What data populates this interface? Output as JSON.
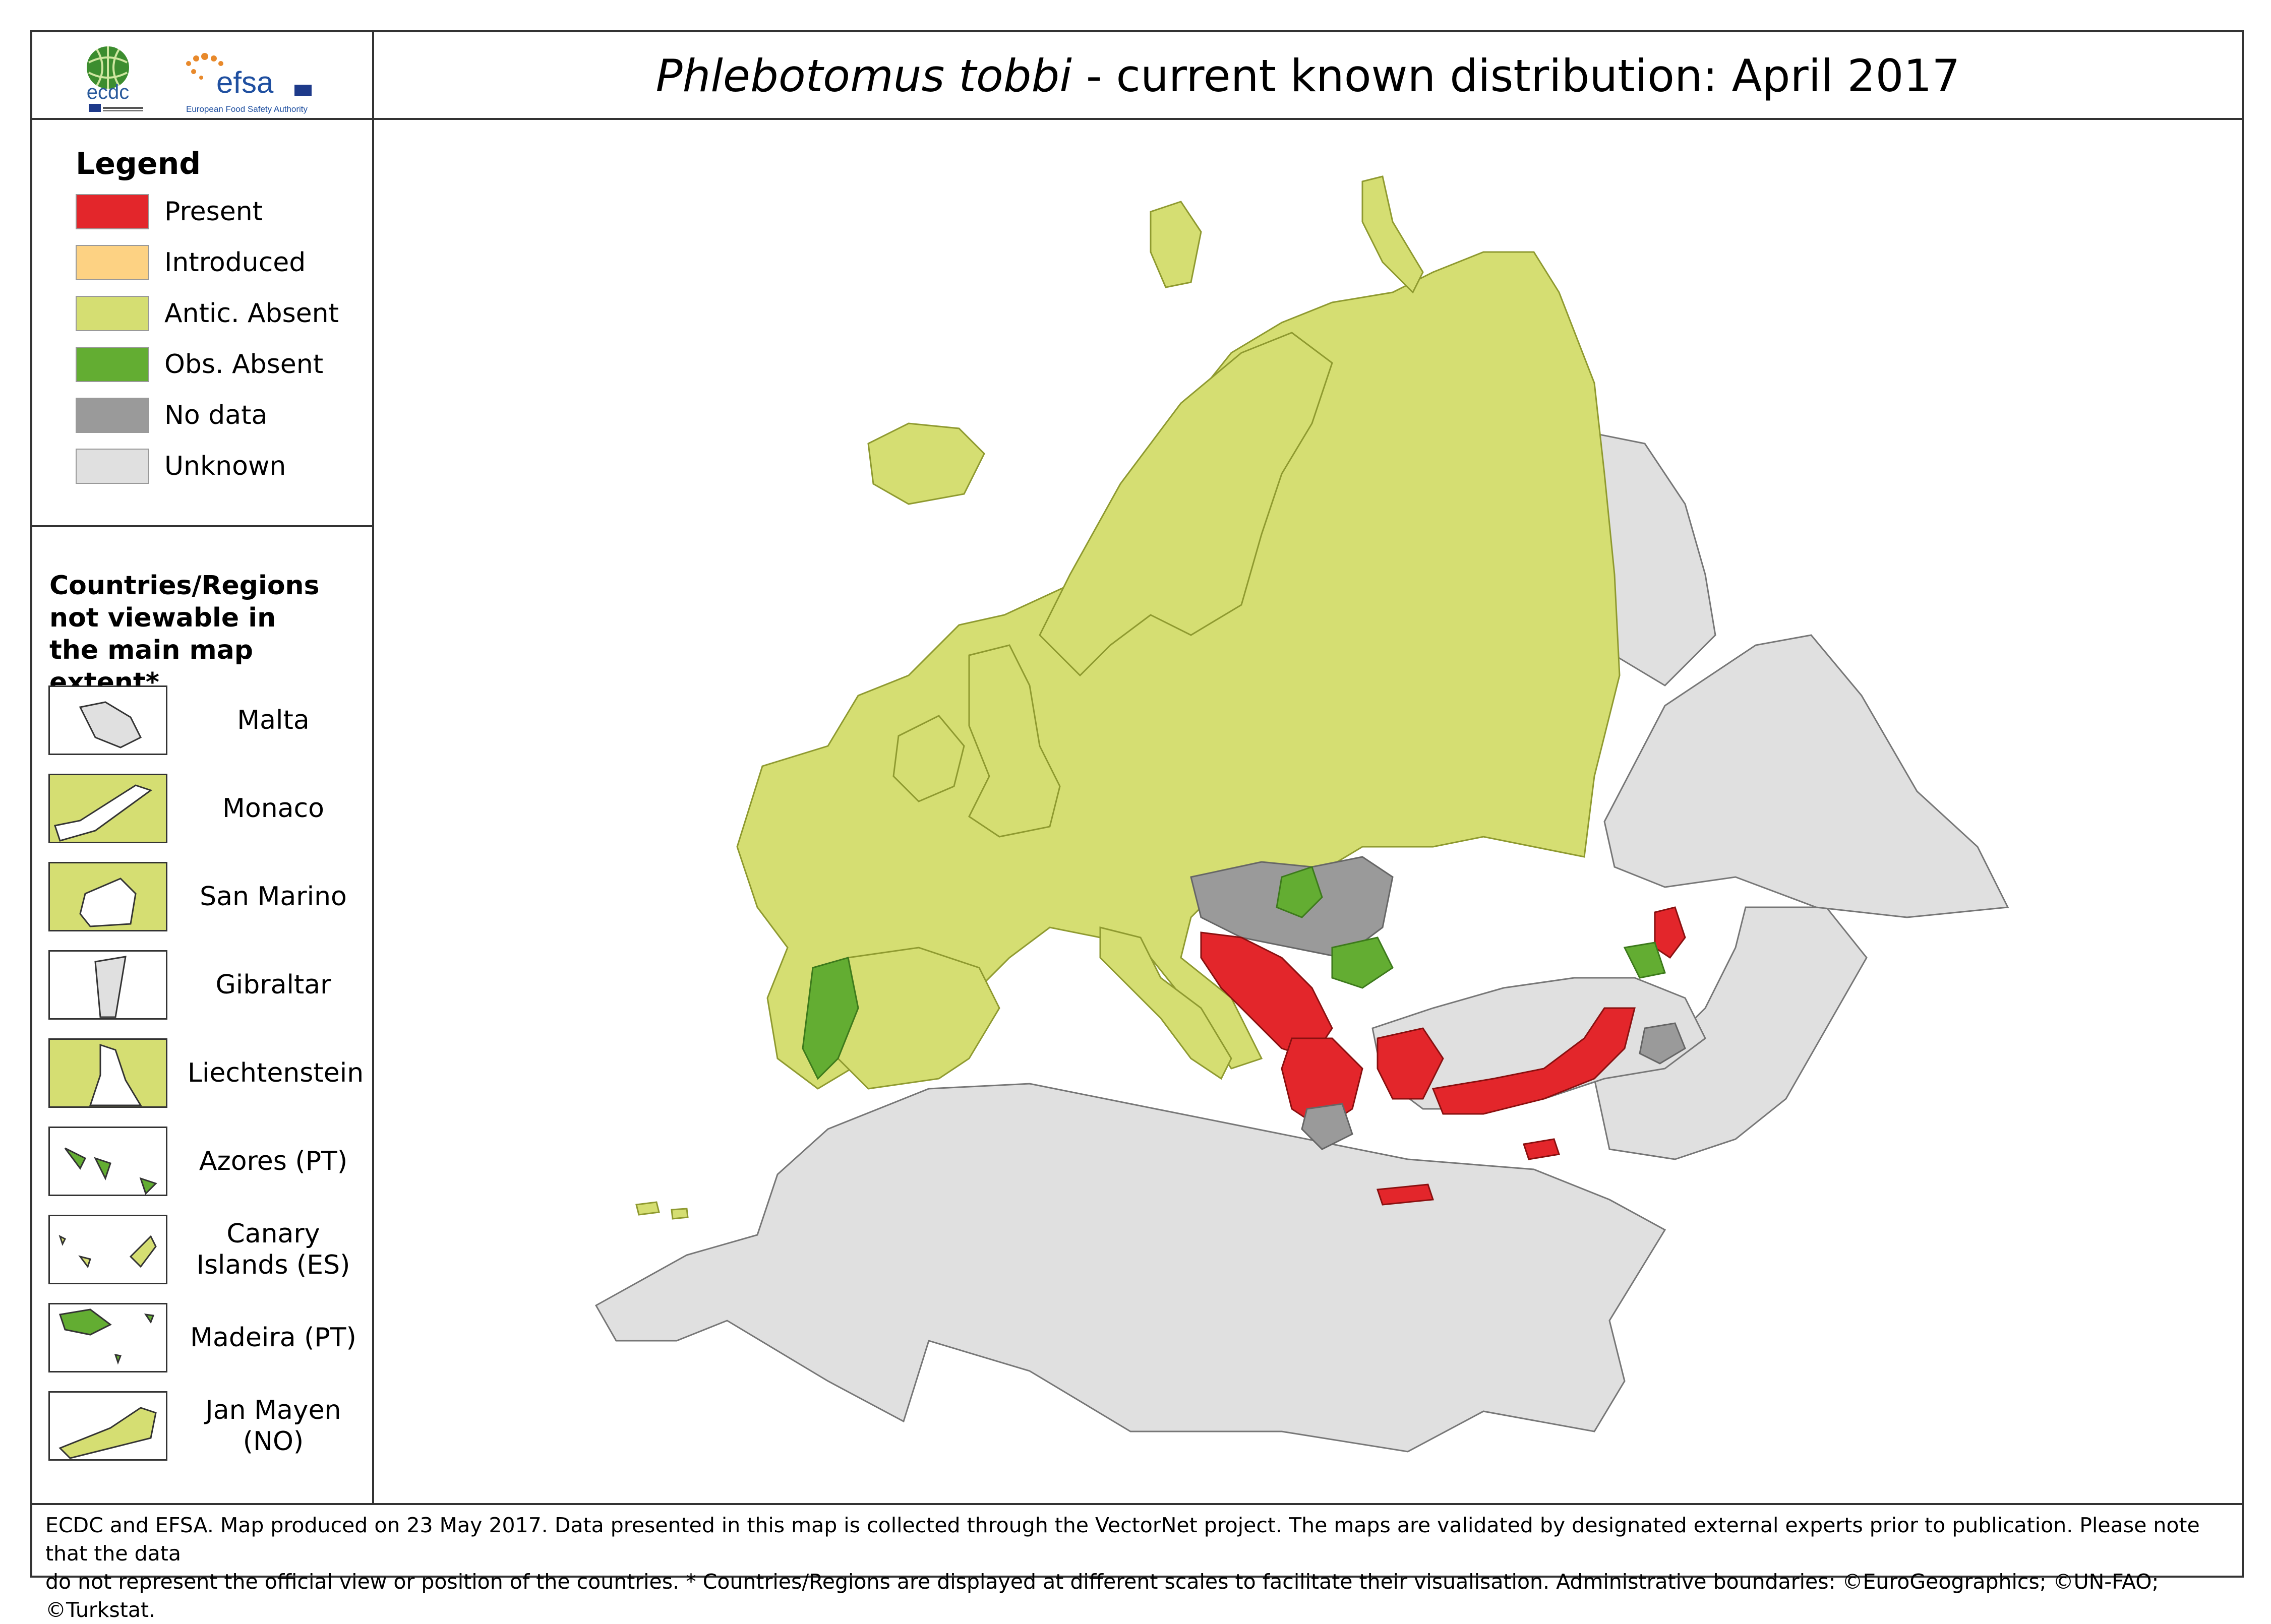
{
  "header": {
    "species": "Phlebotomus tobbi",
    "title_rest": " - current known distribution: April 2017",
    "logos": [
      {
        "icon": "ecdc-globe-logo",
        "text": "ecdc"
      },
      {
        "icon": "efsa-star-logo",
        "text": "efsa",
        "subtext": "European Food Safety Authority"
      }
    ]
  },
  "legend": {
    "title": "Legend",
    "items": [
      {
        "label": "Present",
        "color": "#e3262b"
      },
      {
        "label": "Introduced",
        "color": "#fdd283"
      },
      {
        "label": "Antic. Absent",
        "color": "#d5de72"
      },
      {
        "label": "Obs. Absent",
        "color": "#63ad32"
      },
      {
        "label": "No data",
        "color": "#9a9a9a"
      },
      {
        "label": "Unknown",
        "color": "#e0e0e0"
      }
    ]
  },
  "insets": {
    "title": "Countries/Regions not viewable in the main map extent*",
    "items": [
      {
        "label": "Malta",
        "color": "#e0e0e0"
      },
      {
        "label": "Monaco",
        "color": "#d5de72"
      },
      {
        "label": "San Marino",
        "color": "#d5de72"
      },
      {
        "label": "Gibraltar",
        "color": "#e0e0e0"
      },
      {
        "label": "Liechtenstein",
        "color": "#d5de72"
      },
      {
        "label": "Azores (PT)",
        "color": "#63ad32"
      },
      {
        "label": "Canary Islands (ES)",
        "color": "#d5de72"
      },
      {
        "label": "Madeira (PT)",
        "color": "#63ad32"
      },
      {
        "label": "Jan Mayen (NO)",
        "color": "#d5de72"
      }
    ]
  },
  "footer": {
    "line1": "ECDC and EFSA. Map produced on 23 May 2017. Data presented in this map is collected through the VectorNet project. The maps are validated by designated external experts prior to publication. Please note that the data",
    "line2": "do not represent the official view or position of the countries. * Countries/Regions are displayed at different scales to facilitate their visualisation. Administrative boundaries: ©EuroGeographics; ©UN-FAO; ©Turkstat."
  }
}
